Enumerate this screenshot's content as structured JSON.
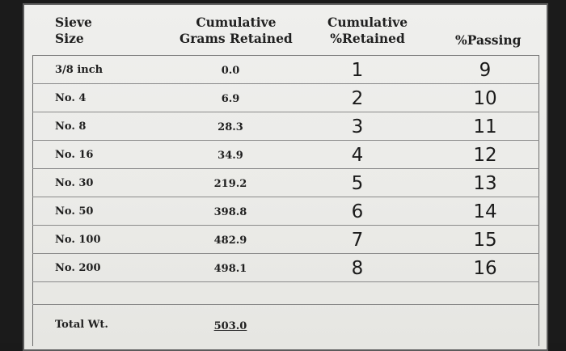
{
  "table": {
    "headers": {
      "sieve_size": "Sieve\nSize",
      "cum_grams": "Cumulative\nGrams Retained",
      "cum_pct": "Cumulative\n%Retained",
      "pct_passing": "%Passing"
    },
    "rows": [
      {
        "sieve": "3/8 inch",
        "grams": "0.0",
        "retained": "1",
        "passing": "9"
      },
      {
        "sieve": "No. 4",
        "grams": "6.9",
        "retained": "2",
        "passing": "10"
      },
      {
        "sieve": "No. 8",
        "grams": "28.3",
        "retained": "3",
        "passing": "11"
      },
      {
        "sieve": "No. 16",
        "grams": "34.9",
        "retained": "4",
        "passing": "12"
      },
      {
        "sieve": "No. 30",
        "grams": "219.2",
        "retained": "5",
        "passing": "13"
      },
      {
        "sieve": "No. 50",
        "grams": "398.8",
        "retained": "6",
        "passing": "14"
      },
      {
        "sieve": "No. 100",
        "grams": "482.9",
        "retained": "7",
        "passing": "15"
      },
      {
        "sieve": "No. 200",
        "grams": "498.1",
        "retained": "8",
        "passing": "16"
      }
    ],
    "total": {
      "label": "Total Wt.",
      "value": "503.0"
    }
  }
}
